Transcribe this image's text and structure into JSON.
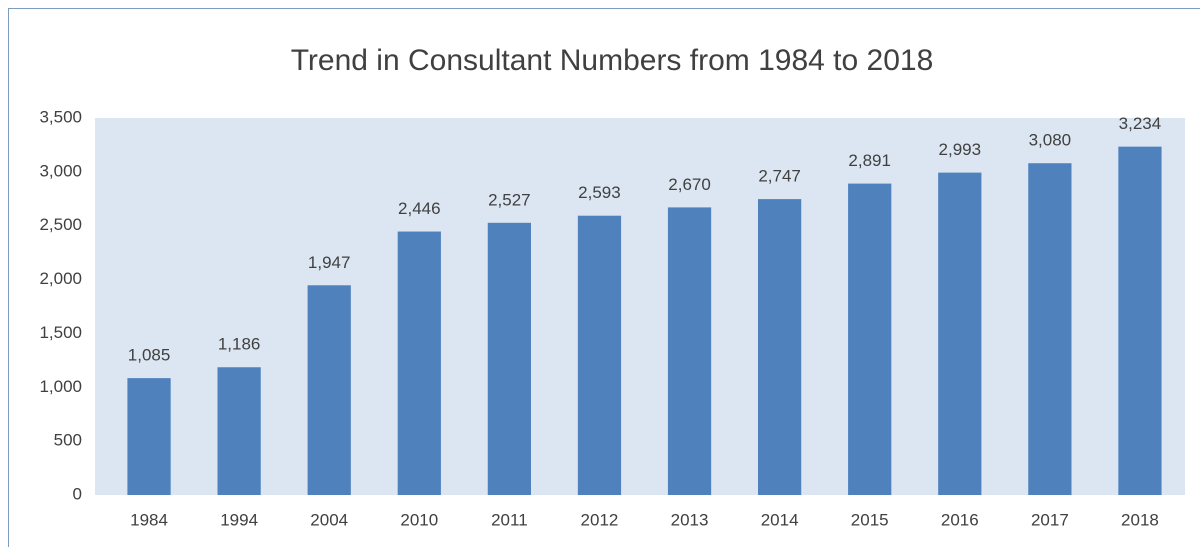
{
  "chart_data": {
    "type": "bar",
    "title": "Trend in Consultant Numbers from 1984 to 2018",
    "categories": [
      "1984",
      "1994",
      "2004",
      "2010",
      "2011",
      "2012",
      "2013",
      "2014",
      "2015",
      "2016",
      "2017",
      "2018"
    ],
    "values": [
      1085,
      1186,
      1947,
      2446,
      2527,
      2593,
      2670,
      2747,
      2891,
      2993,
      3080,
      3234
    ],
    "value_labels": [
      "1,085",
      "1,186",
      "1,947",
      "2,446",
      "2,527",
      "2,593",
      "2,670",
      "2,747",
      "2,891",
      "2,993",
      "3,080",
      "3,234"
    ],
    "color": "#4f81bd",
    "ylim": [
      0,
      3500
    ],
    "yticks": [
      0,
      500,
      {
        "value": 1000,
        "label": "1,000"
      },
      {
        "value": 1500,
        "label": "1,500"
      },
      {
        "value": 2000,
        "label": "2,000"
      },
      {
        "value": 2500,
        "label": "2,500"
      },
      {
        "value": 3000,
        "label": "3,000"
      },
      {
        "value": 3500,
        "label": "3,500"
      }
    ],
    "grid": false
  }
}
